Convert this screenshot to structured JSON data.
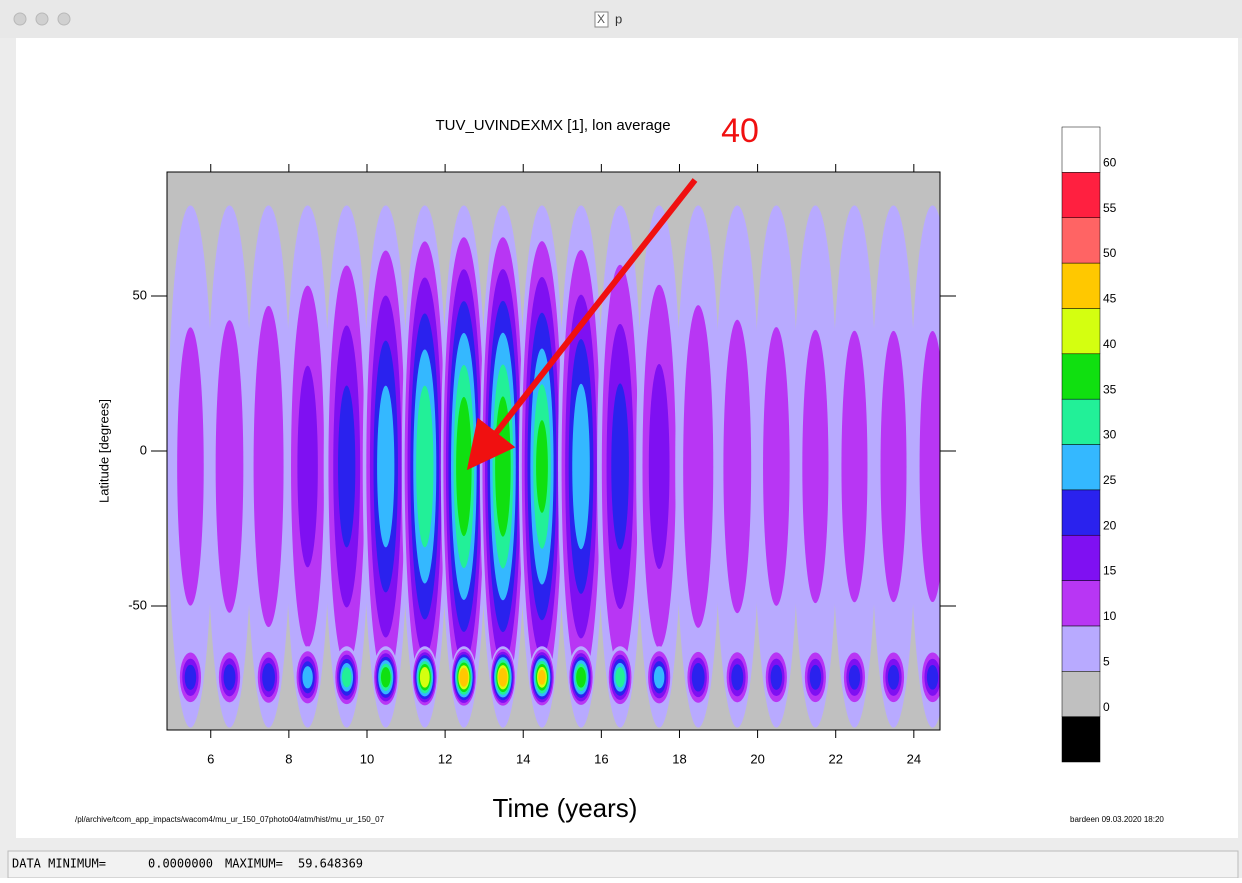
{
  "window": {
    "title": "p"
  },
  "chart_data": {
    "type": "contour",
    "title": "TUV_UVINDEXMX [1], lon average",
    "xlabel": "Time (years)",
    "ylabel": "Latitude [degrees]",
    "xlim": [
      4.88,
      24.67
    ],
    "ylim": [
      -90,
      90
    ],
    "xticks": [
      6,
      8,
      10,
      12,
      14,
      16,
      18,
      20,
      22,
      24
    ],
    "yticks": [
      -50,
      0,
      50
    ],
    "colorbar": {
      "levels": [
        0,
        5,
        10,
        15,
        20,
        25,
        30,
        35,
        40,
        45,
        50,
        55,
        60
      ],
      "colors": [
        "#000000",
        "#c0c0c0",
        "#b8aaff",
        "#b836f4",
        "#7f10f2",
        "#2a22ee",
        "#34b8ff",
        "#22f098",
        "#10e010",
        "#d4ff10",
        "#ffc800",
        "#ff6464",
        "#ff2040",
        "#ffffff"
      ]
    },
    "annotation": "40"
  },
  "footer": {
    "path": "/pl/archive/tcom_app_impacts/wacom4/mu_ur_150_07photo04/atm/hist/mu_ur_150_07",
    "stamp": "bardeen 09.03.2020 18:20"
  },
  "status": {
    "min_label": "DATA MINIMUM=",
    "min_value": "0.0000000",
    "max_label": "MAXIMUM=",
    "max_value": "59.648369"
  }
}
